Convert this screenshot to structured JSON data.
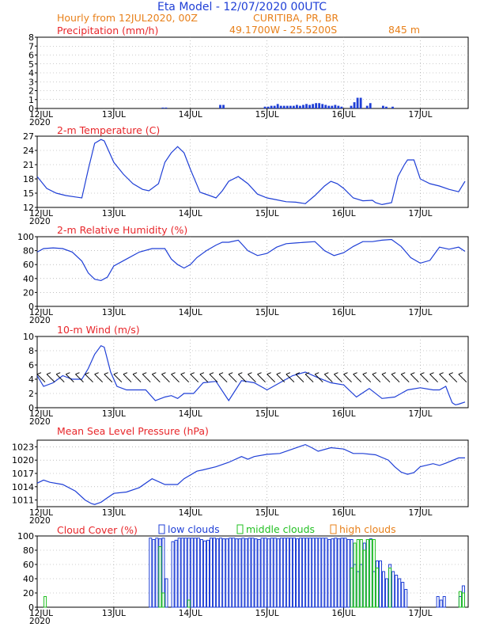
{
  "header": {
    "title": "Eta Model - 12/07/2020 00UTC",
    "subtitle": "Hourly from 12JUL2020, 00Z",
    "location": "CURITIBA, PR, BR",
    "coordinates": "49.1700W - 25.5200S",
    "elevation": "845  m"
  },
  "colors": {
    "title": "#1f3fd6",
    "subtitle": "#e8801a",
    "panel_title": "#e8262a",
    "series": "#1f3fd6",
    "low_clouds": "#1f3fd6",
    "middle_clouds": "#22c022",
    "high_clouds": "#e8801a",
    "wind_barb": "#000000"
  },
  "chart_data": [
    {
      "type": "bar",
      "title": "Precipitation (mm/h)",
      "x_unit": "hours since 12JUL2020 00Z",
      "ylim": [
        0,
        8
      ],
      "yticks": [
        0,
        1,
        2,
        3,
        4,
        5,
        6,
        7,
        8
      ],
      "x": [
        39,
        40,
        57,
        58,
        71,
        72,
        73,
        74,
        75,
        76,
        77,
        78,
        79,
        80,
        81,
        82,
        83,
        84,
        85,
        86,
        87,
        88,
        89,
        90,
        91,
        92,
        93,
        94,
        95,
        98,
        99,
        100,
        101,
        103,
        104,
        108,
        109,
        111
      ],
      "values": [
        0.1,
        0.1,
        0.4,
        0.4,
        0.2,
        0.2,
        0.3,
        0.3,
        0.5,
        0.3,
        0.3,
        0.3,
        0.3,
        0.3,
        0.4,
        0.3,
        0.4,
        0.5,
        0.4,
        0.5,
        0.6,
        0.6,
        0.5,
        0.4,
        0.3,
        0.3,
        0.4,
        0.3,
        0.2,
        0.3,
        0.7,
        1.2,
        1.2,
        0.3,
        0.6,
        0.3,
        0.2,
        0.2
      ]
    },
    {
      "type": "line",
      "title": "2-m Temperature (C)",
      "ylim": [
        12,
        27
      ],
      "yticks": [
        12,
        15,
        18,
        21,
        24,
        27
      ],
      "x": [
        0,
        3,
        6,
        9,
        12,
        14,
        16,
        18,
        20,
        21,
        24,
        27,
        30,
        33,
        35,
        38,
        40,
        42,
        44,
        46,
        48,
        50,
        51,
        54,
        56,
        58,
        60,
        63,
        66,
        69,
        72,
        75,
        78,
        81,
        84,
        87,
        90,
        92,
        94,
        96,
        99,
        102,
        105,
        106,
        108,
        111,
        113,
        115,
        116,
        118,
        120,
        123,
        126,
        129,
        132,
        134
      ],
      "values": [
        18.5,
        16,
        15,
        14.5,
        14.2,
        14,
        20,
        25.5,
        26.3,
        26,
        21.5,
        19,
        17,
        15.8,
        15.5,
        17,
        21.5,
        23.5,
        24.8,
        23.5,
        20,
        16.8,
        15.2,
        14.5,
        14,
        15.5,
        17.5,
        18.5,
        17,
        14.8,
        14,
        13.6,
        13.2,
        13.1,
        12.8,
        14.5,
        16.5,
        17.5,
        17,
        16,
        14,
        13.4,
        13.5,
        13,
        12.6,
        13,
        18.5,
        21,
        22,
        22,
        18,
        17,
        16.5,
        15.8,
        15.3,
        17.5
      ]
    },
    {
      "type": "line",
      "title": "2-m Relative Humidity (%)",
      "ylim": [
        0,
        100
      ],
      "yticks": [
        0,
        20,
        40,
        60,
        80,
        100
      ],
      "x": [
        0,
        2,
        5,
        8,
        11,
        14,
        16,
        18,
        20,
        22,
        24,
        28,
        32,
        36,
        40,
        42,
        44,
        46,
        48,
        50,
        53,
        56,
        58,
        60,
        63,
        66,
        69,
        72,
        75,
        78,
        81,
        84,
        87,
        90,
        93,
        96,
        99,
        102,
        105,
        108,
        111,
        114,
        117,
        120,
        123,
        126,
        129,
        132,
        134
      ],
      "values": [
        78,
        83,
        84,
        83,
        78,
        65,
        48,
        39,
        37,
        42,
        58,
        68,
        78,
        83,
        83,
        68,
        60,
        55,
        60,
        70,
        80,
        88,
        92,
        92,
        95,
        80,
        73,
        76,
        85,
        90,
        91,
        92,
        93,
        80,
        73,
        77,
        86,
        93,
        93,
        95,
        96,
        86,
        70,
        62,
        66,
        85,
        82,
        85,
        79
      ]
    },
    {
      "type": "line",
      "title": "10-m Wind (m/s)",
      "ylim": [
        0,
        10
      ],
      "yticks": [
        0,
        2,
        4,
        6,
        8,
        10
      ],
      "x": [
        0,
        2,
        5,
        8,
        11,
        14,
        16,
        18,
        20,
        21,
        23,
        25,
        28,
        31,
        34,
        37,
        40,
        42,
        44,
        46,
        49,
        52,
        56,
        60,
        64,
        68,
        72,
        76,
        80,
        84,
        88,
        92,
        96,
        100,
        104,
        108,
        112,
        116,
        120,
        124,
        126,
        128,
        129,
        130,
        131,
        132,
        134
      ],
      "values": [
        4.5,
        3,
        3.5,
        4.5,
        4,
        4,
        5.5,
        7.5,
        8.7,
        8.5,
        5,
        3,
        2.5,
        2.5,
        2.5,
        1,
        1.5,
        1.7,
        1.3,
        2,
        2,
        3.5,
        3.7,
        1,
        3.8,
        3.5,
        2.5,
        3.5,
        4.5,
        5,
        4.2,
        3.5,
        3.2,
        1.5,
        2.7,
        1.3,
        1.5,
        2.5,
        2.8,
        2.5,
        2.5,
        3,
        1.8,
        0.7,
        0.4,
        0.5,
        0.8
      ],
      "barbs_hours": [
        0,
        3,
        6,
        9,
        12,
        15,
        18,
        21,
        24,
        27,
        30,
        33,
        36,
        39,
        42,
        45,
        48,
        51,
        54,
        57,
        60,
        63,
        66,
        69,
        72,
        75,
        78,
        81,
        84,
        87,
        90,
        93,
        96,
        99,
        102,
        105,
        108,
        111,
        114,
        117,
        120,
        123,
        126,
        129,
        132
      ]
    },
    {
      "type": "line",
      "title": "Mean Sea Level Pressure (hPa)",
      "ylim": [
        1009.5,
        1024.5
      ],
      "yticks": [
        1011,
        1014,
        1017,
        1020,
        1023
      ],
      "x": [
        0,
        2,
        4,
        8,
        12,
        15,
        17,
        18,
        20,
        22,
        24,
        28,
        32,
        36,
        40,
        44,
        46,
        50,
        52,
        56,
        60,
        64,
        66,
        68,
        72,
        76,
        80,
        84,
        86,
        88,
        92,
        96,
        99,
        102,
        106,
        110,
        112,
        114,
        116,
        118,
        120,
        124,
        126,
        128,
        132,
        134
      ],
      "values": [
        1014.8,
        1015.5,
        1015,
        1014.5,
        1013,
        1011,
        1010.2,
        1010,
        1010.5,
        1011.5,
        1012.5,
        1012.8,
        1013.8,
        1015.8,
        1014.5,
        1014.5,
        1015.8,
        1017.5,
        1017.8,
        1018.5,
        1019.5,
        1020.8,
        1020.2,
        1020.8,
        1021.3,
        1021.5,
        1022.5,
        1023.5,
        1022.8,
        1022,
        1022.8,
        1022.5,
        1021.5,
        1021.5,
        1021.2,
        1020,
        1018.5,
        1017.3,
        1016.8,
        1017.2,
        1018.5,
        1019.2,
        1018.8,
        1019.3,
        1020.5,
        1020.5
      ]
    },
    {
      "type": "bar",
      "title": "Cloud Cover (%)",
      "ylim": [
        0,
        100
      ],
      "yticks": [
        0,
        20,
        40,
        60,
        80,
        100
      ],
      "legend": [
        "low clouds",
        "middle clouds",
        "high clouds"
      ],
      "series": [
        {
          "name": "low clouds",
          "x": [
            35,
            36,
            37,
            38,
            39,
            40,
            42,
            43,
            44,
            45,
            46,
            47,
            48,
            49,
            50,
            51,
            52,
            53,
            54,
            55,
            56,
            57,
            58,
            59,
            60,
            61,
            62,
            63,
            64,
            65,
            66,
            67,
            68,
            69,
            70,
            71,
            72,
            73,
            74,
            75,
            76,
            77,
            78,
            79,
            80,
            81,
            82,
            83,
            84,
            85,
            86,
            87,
            88,
            89,
            90,
            91,
            92,
            93,
            94,
            95,
            96,
            97,
            98,
            99,
            100,
            101,
            102,
            103,
            104,
            105,
            106,
            107,
            108,
            109,
            110,
            111,
            112,
            113,
            114,
            115,
            125,
            126,
            127,
            132,
            133
          ],
          "values": [
            97,
            95,
            97,
            96,
            97,
            40,
            92,
            94,
            97,
            97,
            97,
            97,
            97,
            97,
            97,
            95,
            93,
            94,
            97,
            97,
            96,
            97,
            96,
            96,
            97,
            97,
            96,
            96,
            97,
            96,
            97,
            97,
            96,
            95,
            97,
            97,
            96,
            97,
            97,
            96,
            97,
            97,
            97,
            97,
            97,
            96,
            97,
            97,
            97,
            97,
            97,
            97,
            97,
            97,
            97,
            95,
            96,
            97,
            96,
            97,
            97,
            95,
            95,
            60,
            50,
            60,
            90,
            95,
            96,
            50,
            65,
            65,
            50,
            40,
            60,
            50,
            45,
            40,
            35,
            25,
            15,
            10,
            15,
            15,
            30
          ]
        },
        {
          "name": "middle clouds",
          "x": [
            2,
            38,
            39,
            47,
            98,
            99,
            100,
            101,
            102,
            103,
            104,
            105,
            106,
            110,
            132,
            133
          ],
          "values": [
            15,
            85,
            20,
            10,
            55,
            90,
            95,
            95,
            80,
            95,
            95,
            95,
            55,
            55,
            22,
            20
          ]
        },
        {
          "name": "high clouds",
          "x": [],
          "values": []
        }
      ]
    }
  ],
  "x_axis": {
    "labels": [
      "12JUL",
      "13JUL",
      "14JUL",
      "15JUL",
      "16JUL",
      "17JUL"
    ],
    "first_label_year": "2020"
  }
}
